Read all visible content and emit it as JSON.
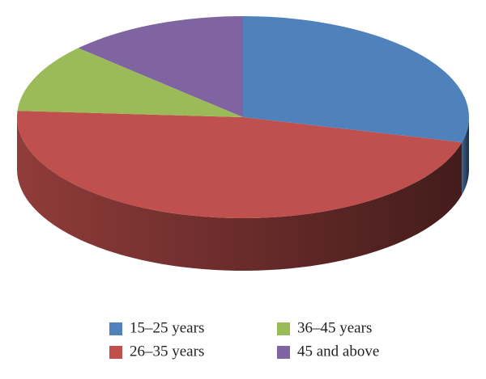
{
  "chart_data": {
    "type": "pie",
    "categories": [
      "15–25 years",
      "26–35 years",
      "36–45 years",
      "45 and above"
    ],
    "values": [
      29,
      47,
      11,
      13
    ],
    "colors": [
      "#4f81bd",
      "#c0504d",
      "#9bbb59",
      "#8064a2"
    ],
    "legend": "bottom"
  }
}
